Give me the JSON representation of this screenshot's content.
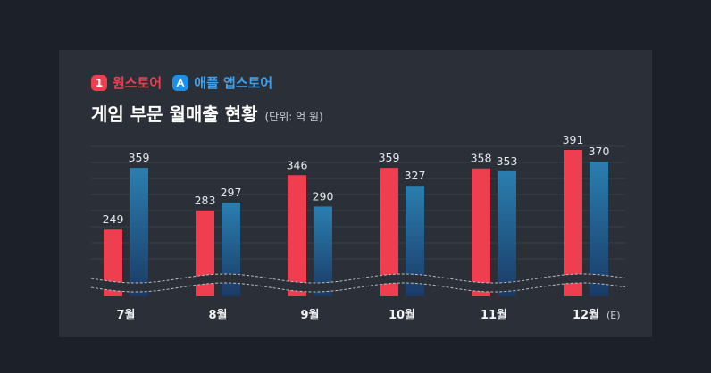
{
  "legend": {
    "onestore_badge": "1",
    "onestore_label": "원스토어",
    "apple_label": "애플 앱스토어"
  },
  "title": "게임 부문 월매출 현황",
  "unit": "(단위: 억 원)",
  "colors": {
    "onestore": "#ef3e4f",
    "apple_top": "#2a7fb0",
    "apple_bottom": "#1a3a66",
    "background": "#2b3038"
  },
  "chart_data": {
    "type": "bar",
    "categories": [
      "7월",
      "8월",
      "9월",
      "10월",
      "11월",
      "12월"
    ],
    "category_suffix": [
      "",
      "",
      "",
      "",
      "",
      "(E)"
    ],
    "series": [
      {
        "name": "원스토어",
        "values": [
          249,
          283,
          346,
          359,
          358,
          391
        ]
      },
      {
        "name": "애플 앱스토어",
        "values": [
          359,
          297,
          290,
          327,
          353,
          370
        ]
      }
    ],
    "title": "게임 부문 월매출 현황",
    "ylabel": "(단위: 억 원)",
    "axis_break": true,
    "grid": true,
    "legend": "top-left"
  }
}
